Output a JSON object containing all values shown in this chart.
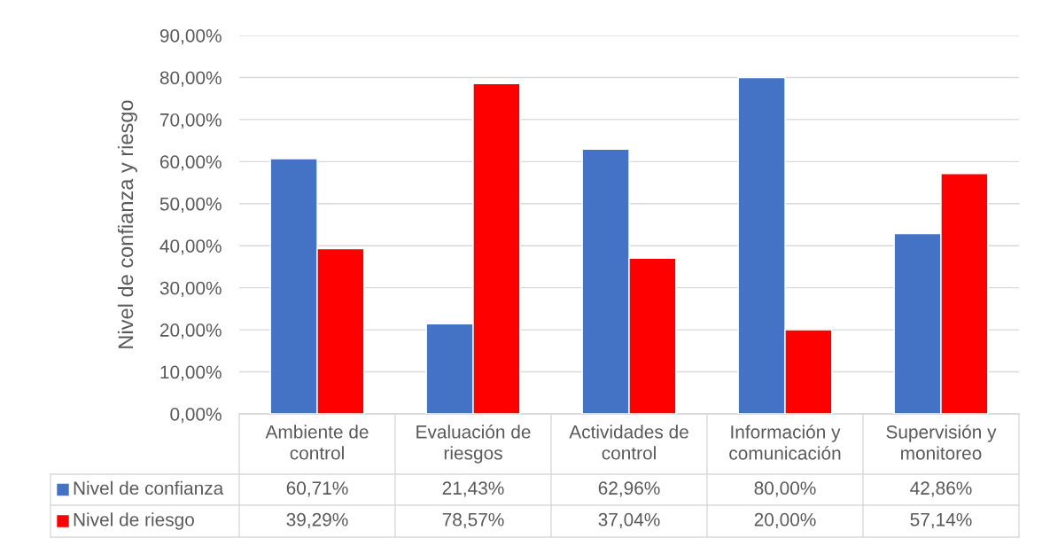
{
  "chart_data": {
    "type": "bar",
    "ylabel": "Nivel de confianza y riesgo",
    "categories": [
      "Ambiente de\ncontrol",
      "Evaluación de\nriesgos",
      "Actividades de\ncontrol",
      "Información y\ncomunicación",
      "Supervisión y\nmonitoreo"
    ],
    "series": [
      {
        "name": "Nivel de confianza",
        "color": "#4472c4",
        "values": [
          60.71,
          21.43,
          62.96,
          80.0,
          42.86
        ],
        "value_labels": [
          "60,71%",
          "21,43%",
          "62,96%",
          "80,00%",
          "42,86%"
        ]
      },
      {
        "name": "Nivel de riesgo",
        "color": "#ff0000",
        "values": [
          39.29,
          78.57,
          37.04,
          20.0,
          57.14
        ],
        "value_labels": [
          "39,29%",
          "78,57%",
          "37,04%",
          "20,00%",
          "57,14%"
        ]
      }
    ],
    "ylim": [
      0,
      90
    ],
    "yticks": [
      {
        "value": 0,
        "label": "0,00%"
      },
      {
        "value": 10,
        "label": "10,00%"
      },
      {
        "value": 20,
        "label": "20,00%"
      },
      {
        "value": 30,
        "label": "30,00%"
      },
      {
        "value": 40,
        "label": "40,00%"
      },
      {
        "value": 50,
        "label": "50,00%"
      },
      {
        "value": 60,
        "label": "60,00%"
      },
      {
        "value": 70,
        "label": "70,00%"
      },
      {
        "value": 80,
        "label": "80,00%"
      },
      {
        "value": 90,
        "label": "90,00%"
      }
    ],
    "grid": "y",
    "legend": "bottom"
  }
}
